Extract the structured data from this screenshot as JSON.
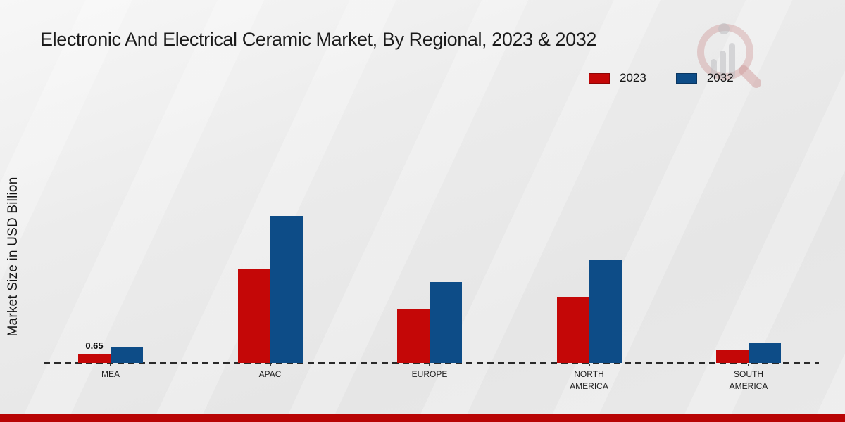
{
  "title": "Electronic And Electrical Ceramic Market, By Regional, 2023 & 2032",
  "ylabel": "Market Size in USD Billion",
  "legend": {
    "items": [
      {
        "label": "2023",
        "color": "#c40707"
      },
      {
        "label": "2032",
        "color": "#0d4c87"
      }
    ]
  },
  "colors": {
    "series_2023": "#c40707",
    "series_2032": "#0d4c87",
    "footer_bar": "#b80404",
    "baseline": "#2a2a2a"
  },
  "watermark": {
    "name": "magnifier-bar-chart-logo"
  },
  "chart_data": {
    "type": "bar",
    "categories": [
      "MEA",
      "APAC",
      "EUROPE",
      "NORTH AMERICA",
      "SOUTH AMERICA"
    ],
    "series": [
      {
        "name": "2023",
        "color": "#c40707",
        "values": [
          0.65,
          6.65,
          3.85,
          4.7,
          0.9
        ]
      },
      {
        "name": "2032",
        "color": "#0d4c87",
        "values": [
          1.1,
          10.45,
          5.75,
          7.3,
          1.45
        ]
      }
    ],
    "annotations": [
      {
        "category": "MEA",
        "series": "2023",
        "text": "0.65"
      }
    ],
    "title": "Electronic And Electrical Ceramic Market, By Regional, 2023 & 2032",
    "xlabel": "",
    "ylabel": "Market Size in USD Billion",
    "units": "USD Billion",
    "ylim": [
      0,
      11
    ],
    "grid": false,
    "y_axis_ticks_visible": false,
    "baseline_style": "dashed",
    "legend_position": "top-right"
  }
}
